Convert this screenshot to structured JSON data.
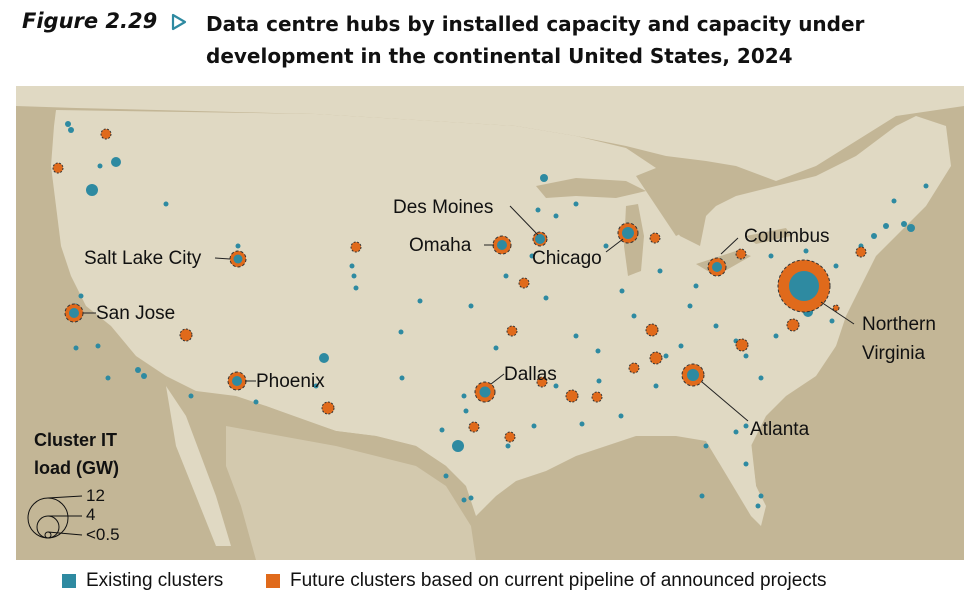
{
  "header": {
    "figure_label": "Figure 2.29",
    "title_line1": "Data centre hubs by installed capacity and capacity under",
    "title_line2": "development in the continental United States, 2024"
  },
  "colors": {
    "existing": "#2e8aa1",
    "future": "#e06a1b",
    "land": "#e0d9c3",
    "background": "#c3b696"
  },
  "map": {
    "cities": [
      {
        "id": "des-moines",
        "label": "Des Moines"
      },
      {
        "id": "omaha",
        "label": "Omaha"
      },
      {
        "id": "chicago",
        "label": "Chicago"
      },
      {
        "id": "columbus",
        "label": "Columbus"
      },
      {
        "id": "salt-lake-city",
        "label": "Salt Lake City"
      },
      {
        "id": "san-jose",
        "label": "San Jose"
      },
      {
        "id": "phoenix",
        "label": "Phoenix"
      },
      {
        "id": "dallas",
        "label": "Dallas"
      },
      {
        "id": "northern-virginia",
        "label_line1": "Northern",
        "label_line2": "Virginia"
      },
      {
        "id": "atlanta",
        "label": "Atlanta"
      }
    ]
  },
  "size_legend": {
    "title_line1": "Cluster IT",
    "title_line2": "load (GW)",
    "values": [
      "12",
      "4",
      "<0.5"
    ]
  },
  "legend": {
    "existing_label": "Existing clusters",
    "future_label": "Future clusters based on current pipeline of announced projects"
  }
}
